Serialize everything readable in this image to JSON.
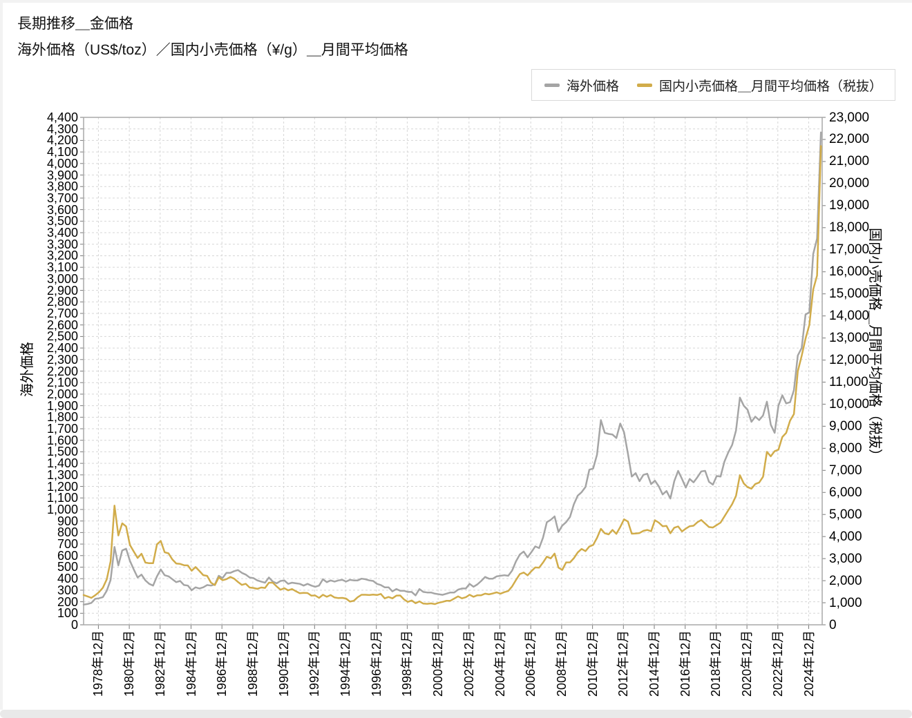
{
  "page": {
    "title": "長期推移＿金価格",
    "subtitle": "海外価格（US$/toz）／国内小売価格（¥/g）＿月間平均価格"
  },
  "legend": {
    "items": [
      {
        "label": "海外価格",
        "color": "#a5a5a5"
      },
      {
        "label": "国内小売価格＿月間平均価格（税抜）",
        "color": "#d1ac4a"
      }
    ]
  },
  "colors": {
    "overseas_line": "#a5a5a5",
    "domestic_line": "#d1ac4a",
    "gridline": "#d6d6d6",
    "plot_border": "#a8a8a8",
    "tick": "#7a7a7a"
  },
  "chart_data": {
    "type": "line",
    "title": "長期推移＿金価格",
    "subtitle": "海外価格（US$/toz）／国内小売価格（¥/g）＿月間平均価格",
    "grid": true,
    "legend_position": "top-right",
    "left_axis": {
      "label": "海外価格",
      "unit": "US$/toz",
      "min": 0,
      "max": 4400,
      "step": 100
    },
    "right_axis": {
      "label": "国内小売価格＿月間平均価格（税抜）",
      "unit": "¥/g",
      "min": 0,
      "max": 23000,
      "step": 1000
    },
    "x_axis": {
      "start_year": 1978.0,
      "end_year": 2025.83,
      "sample_step_years": 0.25,
      "tick_labels": [
        "1978年12月",
        "1980年12月",
        "1982年12月",
        "1984年12月",
        "1986年12月",
        "1988年12月",
        "1990年12月",
        "1992年12月",
        "1994年12月",
        "1996年12月",
        "1998年12月",
        "2000年12月",
        "2002年12月",
        "2004年12月",
        "2006年12月",
        "2008年12月",
        "2010年12月",
        "2012年12月",
        "2014年12月",
        "2016年12月",
        "2018年12月",
        "2020年12月",
        "2022年12月",
        "2024年12月"
      ],
      "first_tick_year": 1978.958,
      "tick_interval_years": 2
    },
    "series": [
      {
        "name": "海外価格",
        "axis": "left",
        "color": "#a5a5a5",
        "values": [
          175,
          180,
          190,
          225,
          230,
          240,
          295,
          390,
          675,
          515,
          645,
          660,
          555,
          480,
          410,
          435,
          385,
          355,
          340,
          420,
          480,
          430,
          420,
          395,
          370,
          380,
          345,
          340,
          300,
          325,
          315,
          325,
          345,
          340,
          350,
          425,
          405,
          450,
          450,
          465,
          475,
          450,
          435,
          410,
          405,
          385,
          375,
          365,
          410,
          375,
          360,
          380,
          385,
          355,
          365,
          360,
          355,
          340,
          355,
          340,
          330,
          340,
          395,
          370,
          385,
          375,
          385,
          390,
          375,
          390,
          385,
          385,
          400,
          395,
          385,
          380,
          355,
          345,
          325,
          325,
          290,
          310,
          295,
          295,
          285,
          285,
          255,
          310,
          285,
          280,
          280,
          270,
          265,
          260,
          270,
          280,
          280,
          305,
          315,
          315,
          355,
          330,
          350,
          380,
          415,
          400,
          400,
          420,
          425,
          430,
          425,
          470,
          550,
          610,
          635,
          585,
          630,
          680,
          665,
          755,
          890,
          910,
          940,
          805,
          860,
          890,
          935,
          1045,
          1120,
          1150,
          1195,
          1345,
          1355,
          1475,
          1775,
          1665,
          1655,
          1650,
          1620,
          1745,
          1670,
          1485,
          1285,
          1315,
          1245,
          1300,
          1310,
          1220,
          1250,
          1200,
          1130,
          1160,
          1095,
          1245,
          1335,
          1265,
          1190,
          1265,
          1235,
          1280,
          1330,
          1335,
          1240,
          1215,
          1290,
          1285,
          1415,
          1495,
          1560,
          1685,
          1970,
          1900,
          1865,
          1760,
          1805,
          1775,
          1815,
          1935,
          1735,
          1665,
          1900,
          1990,
          1920,
          1930,
          2035,
          2335,
          2400,
          2690,
          2710,
          3215,
          3350,
          4270
        ]
      },
      {
        "name": "国内小売価格＿月間平均価格（税抜）",
        "axis": "right",
        "color": "#d1ac4a",
        "values": [
          1350,
          1290,
          1220,
          1340,
          1480,
          1680,
          2060,
          2880,
          5400,
          4050,
          4600,
          4460,
          3620,
          3320,
          3030,
          3220,
          2820,
          2790,
          2790,
          3650,
          3800,
          3290,
          3240,
          2960,
          2780,
          2760,
          2700,
          2690,
          2450,
          2620,
          2440,
          2250,
          2220,
          1910,
          1800,
          2150,
          2020,
          2070,
          2170,
          2090,
          1940,
          1810,
          1860,
          1690,
          1670,
          1630,
          1690,
          1670,
          1910,
          1910,
          1740,
          1590,
          1660,
          1560,
          1620,
          1520,
          1430,
          1450,
          1440,
          1320,
          1330,
          1220,
          1360,
          1270,
          1350,
          1240,
          1210,
          1220,
          1190,
          1050,
          1090,
          1250,
          1360,
          1360,
          1350,
          1370,
          1350,
          1400,
          1200,
          1260,
          1200,
          1320,
          1330,
          1150,
          1040,
          1100,
          980,
          1060,
          960,
          950,
          970,
          940,
          1000,
          1040,
          1090,
          1090,
          1190,
          1290,
          1200,
          1250,
          1360,
          1270,
          1340,
          1340,
          1410,
          1380,
          1420,
          1470,
          1410,
          1480,
          1530,
          1740,
          2030,
          2300,
          2370,
          2240,
          2430,
          2600,
          2590,
          2820,
          3090,
          3010,
          3230,
          2590,
          2490,
          2830,
          2830,
          3020,
          3280,
          3440,
          3340,
          3550,
          3620,
          3940,
          4350,
          4150,
          4100,
          4300,
          4120,
          4430,
          4780,
          4680,
          4130,
          4140,
          4160,
          4260,
          4300,
          4240,
          4740,
          4630,
          4470,
          4480,
          4150,
          4400,
          4460,
          4230,
          4360,
          4470,
          4490,
          4650,
          4750,
          4590,
          4430,
          4410,
          4520,
          4630,
          4910,
          5190,
          5470,
          5850,
          6780,
          6410,
          6240,
          6170,
          6380,
          6450,
          6710,
          7840,
          7640,
          7870,
          7940,
          8510,
          8700,
          9250,
          9550,
          11490,
          12190,
          12970,
          13590,
          15200,
          15830,
          21700
        ]
      }
    ]
  }
}
